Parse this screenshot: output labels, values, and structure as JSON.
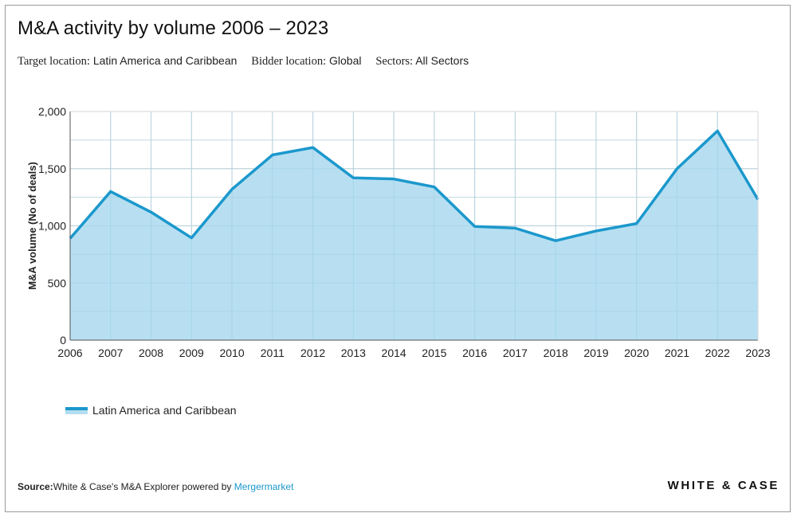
{
  "header": {
    "title": "M&A activity by volume 2006 – 2023",
    "filters": [
      {
        "label": "Target location:",
        "value": "Latin America and Caribbean"
      },
      {
        "label": "Bidder location:",
        "value": "Global"
      },
      {
        "label": "Sectors:",
        "value": "All Sectors"
      }
    ]
  },
  "colors": {
    "line": "#1b98cc",
    "fill": "#b3ddf0",
    "grid": "#d6d6d6"
  },
  "chart_data": {
    "type": "area",
    "title": "M&A activity by volume 2006 – 2023",
    "xlabel": "",
    "ylabel": "M&A volume (No of deals)",
    "ylim": [
      0,
      2000
    ],
    "yticks": [
      0,
      500,
      1000,
      1500,
      2000
    ],
    "ytick_labels": [
      "0",
      "500",
      "1,000",
      "1,500",
      "2,000"
    ],
    "grid": true,
    "legend": "bottom-left",
    "categories": [
      "2006",
      "2007",
      "2008",
      "2009",
      "2010",
      "2011",
      "2012",
      "2013",
      "2014",
      "2015",
      "2016",
      "2017",
      "2018",
      "2019",
      "2020",
      "2021",
      "2022",
      "2023"
    ],
    "series": [
      {
        "name": "Latin America and Caribbean",
        "values": [
          890,
          1300,
          1120,
          895,
          1320,
          1620,
          1685,
          1420,
          1410,
          1340,
          995,
          980,
          870,
          955,
          1020,
          1500,
          1830,
          1230
        ]
      }
    ]
  },
  "legend": {
    "label": "Latin America and Caribbean"
  },
  "footer": {
    "source_label": "Source:",
    "source_text": "White & Case's M&A Explorer powered by",
    "source_link": "Mergermarket",
    "brand": "WHITE & CASE"
  }
}
